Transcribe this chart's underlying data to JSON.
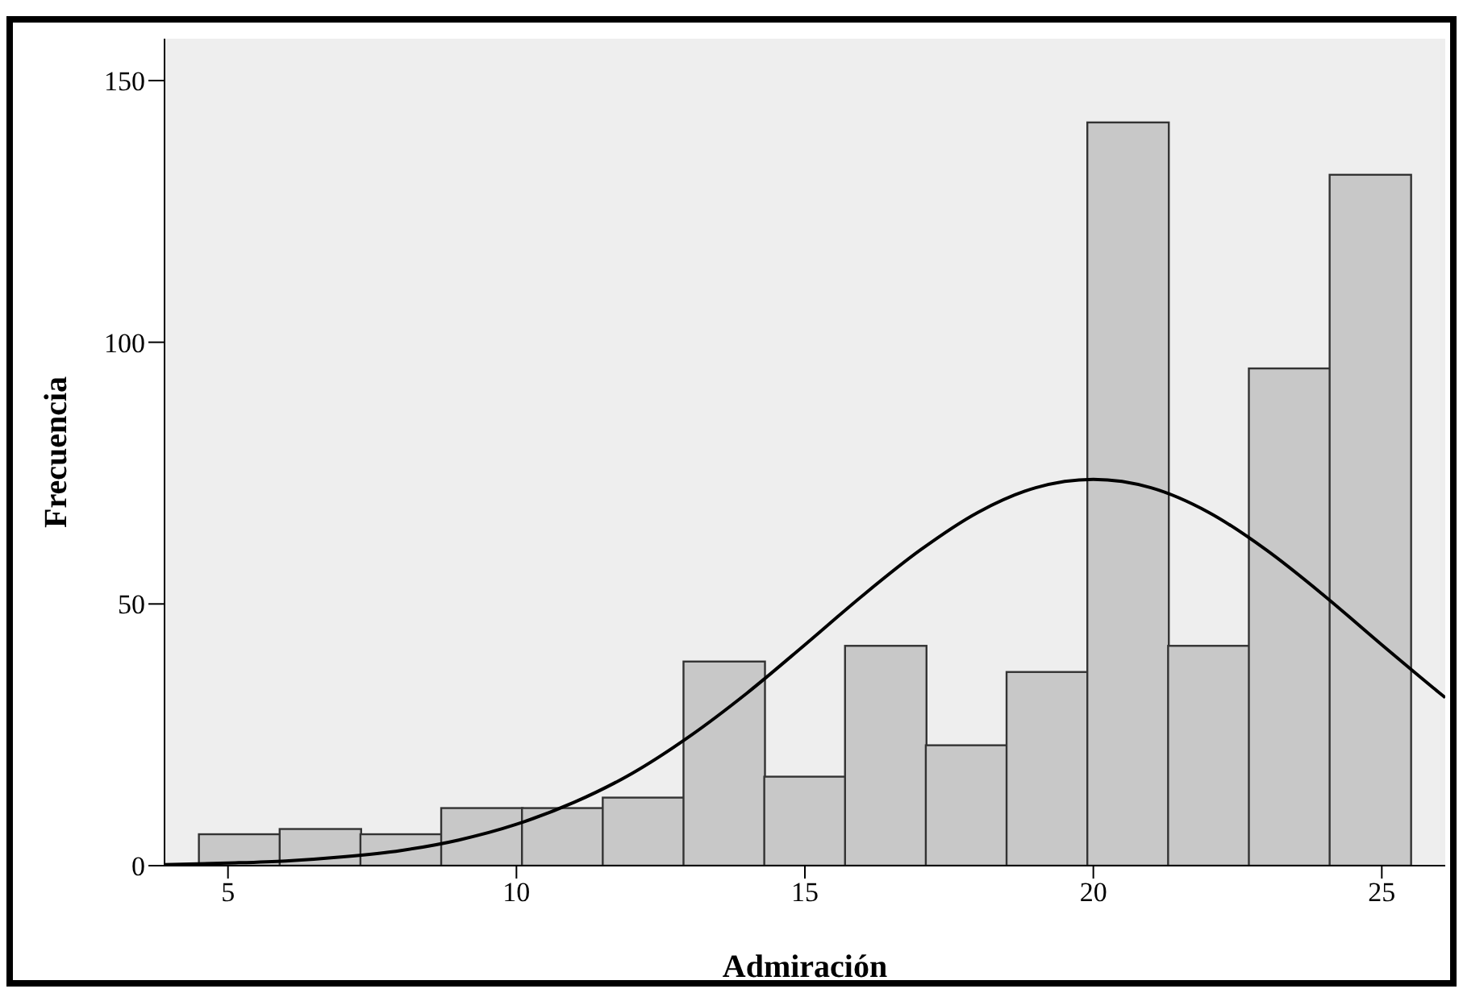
{
  "chart_data": {
    "type": "histogram",
    "xlabel": "Admiración",
    "ylabel": "Frecuencia",
    "xlim": [
      3.9,
      26.1
    ],
    "xticks": [
      5,
      10,
      15,
      20,
      25
    ],
    "ylim": [
      0,
      158
    ],
    "yticks": [
      0,
      50,
      100,
      150
    ],
    "series": [
      {
        "type": "histogram",
        "color": "#c8c8c8",
        "bins": [
          4.5,
          5.9,
          7.3,
          8.7,
          10.1,
          11.5,
          12.9,
          14.3,
          15.7,
          17.1,
          18.5,
          19.9,
          21.3,
          22.7,
          24.1,
          25.5
        ],
        "values": [
          6,
          7,
          6,
          11,
          11,
          13,
          39,
          17,
          42,
          23,
          37,
          142,
          42,
          95,
          132
        ]
      },
      {
        "type": "line",
        "color": "#000000",
        "x": [
          3.9,
          5,
          6,
          7,
          8,
          9,
          10,
          11,
          12,
          13,
          14,
          15,
          16,
          17,
          18,
          19,
          20,
          21,
          22,
          23,
          24,
          25,
          26,
          26.1
        ],
        "values": [
          0.2,
          0.5,
          0.9,
          1.7,
          2.9,
          4.9,
          7.9,
          12.1,
          17.6,
          24.7,
          33.0,
          42.2,
          51.6,
          60.3,
          67.5,
          72.2,
          73.8,
          72.2,
          67.5,
          60.3,
          51.6,
          42.2,
          33.0,
          32.1
        ]
      }
    ]
  }
}
